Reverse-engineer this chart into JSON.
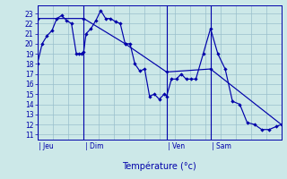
{
  "xlabel": "Température (°c)",
  "background_color": "#cce8e8",
  "grid_color": "#99bfcc",
  "line_color": "#0000aa",
  "ylim": [
    10.5,
    23.8
  ],
  "yticks": [
    11,
    12,
    13,
    14,
    15,
    16,
    17,
    18,
    19,
    20,
    21,
    22,
    23
  ],
  "xlim": [
    0,
    100
  ],
  "day_vline_positions": [
    0,
    19,
    53,
    71
  ],
  "day_names": [
    "Jeu",
    "Dim",
    "Ven",
    "Sam"
  ],
  "series1_x": [
    0,
    2,
    4,
    6,
    8,
    10,
    12,
    14,
    16,
    17,
    18,
    19,
    20,
    22,
    24,
    26,
    28,
    30,
    32,
    34,
    36,
    38,
    40,
    42,
    44,
    46,
    48,
    50,
    52,
    53,
    55,
    57,
    59,
    61,
    63,
    65,
    68,
    71,
    74,
    77,
    80,
    83,
    86,
    89,
    92,
    95,
    98,
    100
  ],
  "series1_y": [
    18.0,
    20.0,
    20.8,
    21.3,
    22.5,
    22.8,
    22.3,
    22.0,
    19.0,
    19.0,
    19.0,
    19.2,
    21.0,
    21.5,
    22.3,
    23.3,
    22.5,
    22.5,
    22.2,
    22.0,
    20.0,
    20.0,
    18.0,
    17.3,
    17.5,
    14.8,
    15.0,
    14.5,
    15.0,
    14.8,
    16.5,
    16.5,
    17.0,
    16.5,
    16.5,
    16.5,
    19.0,
    21.5,
    19.0,
    17.5,
    14.3,
    14.0,
    12.2,
    12.0,
    11.5,
    11.5,
    11.8,
    12.0
  ],
  "series2_x": [
    0,
    19,
    36,
    53,
    71,
    100
  ],
  "series2_y": [
    22.5,
    22.5,
    20.0,
    17.2,
    17.5,
    12.0
  ]
}
